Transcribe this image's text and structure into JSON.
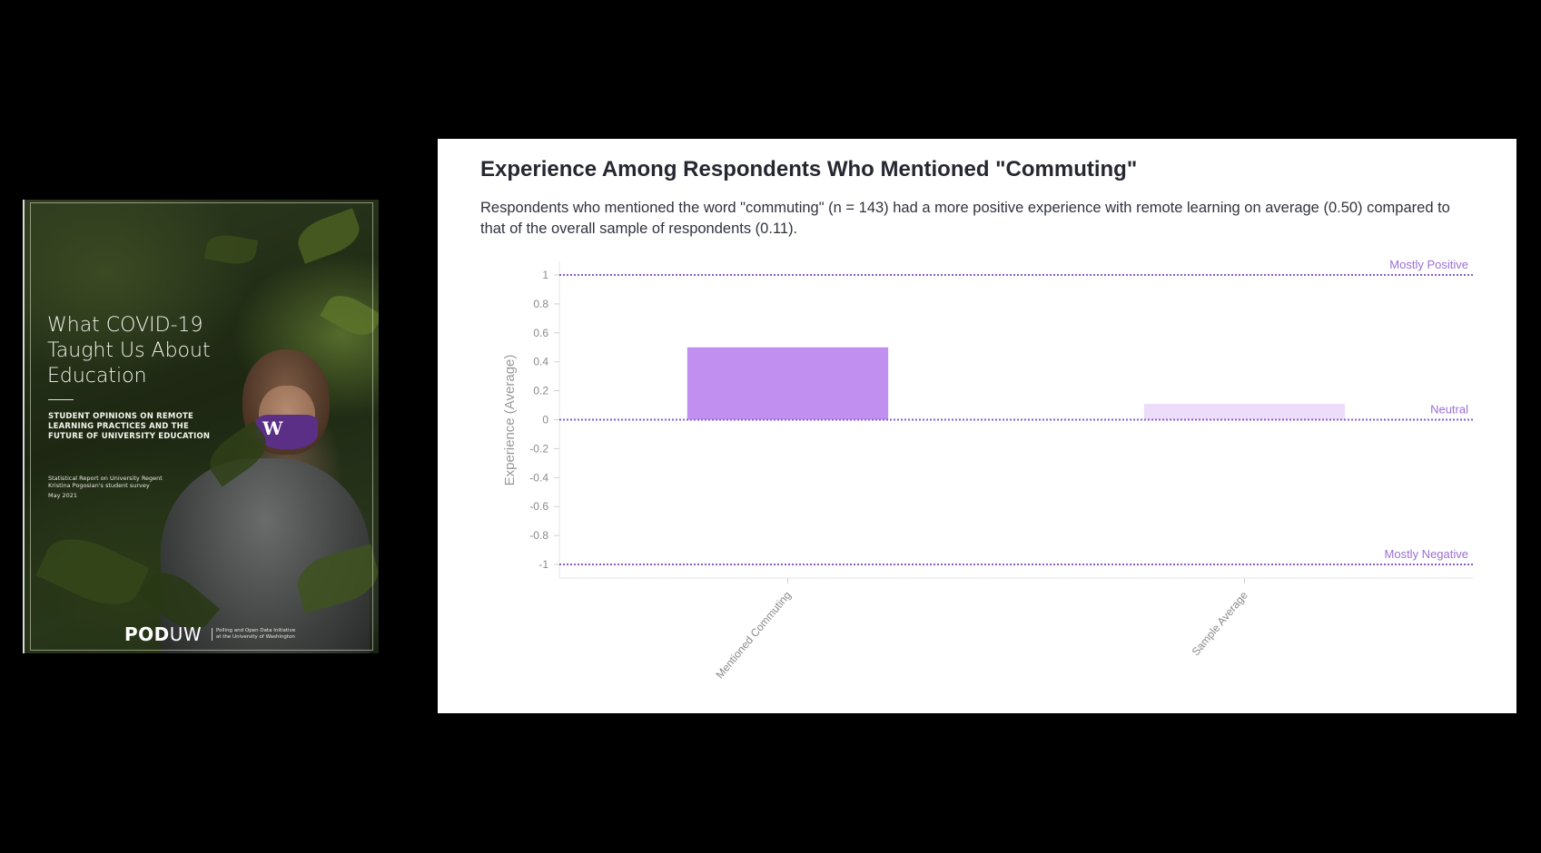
{
  "cover": {
    "title": "What COVID-19 Taught Us About Education",
    "subtitle": "STUDENT OPINIONS ON REMOTE LEARNING PRACTICES AND THE FUTURE OF UNIVERSITY EDUCATION",
    "meta_line1": "Statistical Report on University Regent",
    "meta_line2": "Kristina Pogosian's student survey",
    "meta_line3": "May 2021",
    "brand_bold": "POD",
    "brand_light": "UW",
    "brand_sub": "Polling and Open Data Initiative at the University of Washington",
    "mask_letter": "W"
  },
  "colors": {
    "bar_primary": "#c08ff0",
    "bar_secondary": "#eedcfb",
    "reference_line": "#8a5cd0",
    "reference_label": "#9b6fd6"
  },
  "chart_data": {
    "type": "bar",
    "title": "Experience Among Respondents Who Mentioned \"Commuting\"",
    "description": "Respondents who mentioned the word \"commuting\" (n = 143) had a more positive experience with remote learning on average (0.50) compared to that of the overall sample of respondents (0.11).",
    "categories": [
      "Mentioned Commuting",
      "Sample Average"
    ],
    "values": [
      0.5,
      0.11
    ],
    "ylabel": "Experience (Average)",
    "xlabel": "",
    "ylim": [
      -1,
      1
    ],
    "yticks": [
      1,
      0.8,
      0.6,
      0.4,
      0.2,
      0,
      -0.2,
      -0.4,
      -0.6,
      -0.8,
      -1
    ],
    "ytick_labels": [
      "1",
      "0.8",
      "0.6",
      "0.4",
      "0.2",
      "0",
      "-0.2",
      "-0.4",
      "-0.6",
      "-0.8",
      "-1"
    ],
    "reference_lines": [
      {
        "value": 1,
        "label": "Mostly Positive"
      },
      {
        "value": 0,
        "label": "Neutral"
      },
      {
        "value": -1,
        "label": "Mostly Negative"
      }
    ],
    "grid": false,
    "legend": "none"
  }
}
